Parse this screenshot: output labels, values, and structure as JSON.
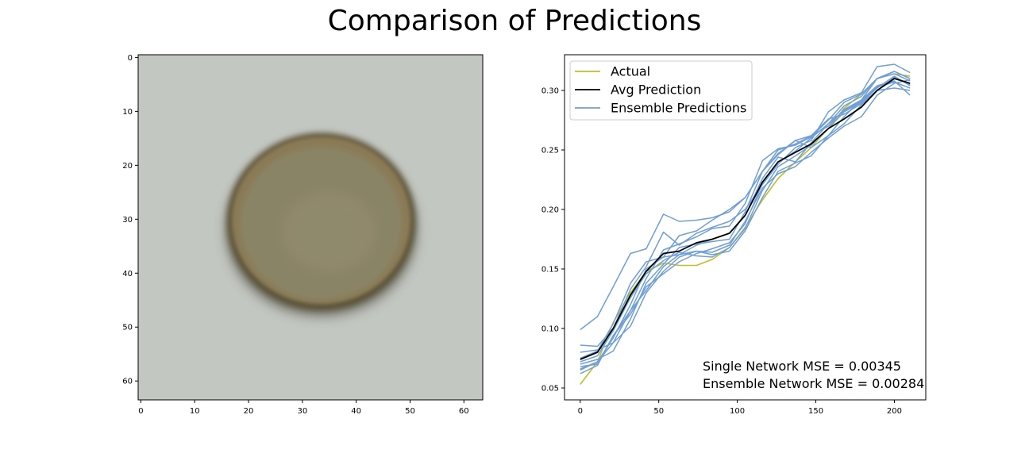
{
  "figure": {
    "title": "Comparison of Predictions"
  },
  "chart_data": [
    {
      "type": "image",
      "title": "",
      "xlabel": "",
      "ylabel": "",
      "xlim": [
        0,
        64
      ],
      "ylim": [
        64,
        0
      ],
      "x_ticks": [
        0,
        10,
        20,
        30,
        40,
        50,
        60
      ],
      "y_ticks": [
        0,
        10,
        20,
        30,
        40,
        50,
        60
      ],
      "content": "blurred brownish circular object centered on a light gray background",
      "colors": {
        "background": "#c3c7c1",
        "ring_dark": "#5b5239",
        "ring_edge": "#8a7a55",
        "fill": "#8a8466",
        "fill_light": "#958e70",
        "bottom_shadow": "#4a4a3c"
      },
      "object": {
        "center_x": 34,
        "center_y": 31,
        "radius_x": 17.5,
        "radius_y": 16.5
      }
    },
    {
      "type": "line",
      "title": "",
      "xlabel": "",
      "ylabel": "",
      "xlim": [
        -10,
        220
      ],
      "ylim": [
        0.04,
        0.33
      ],
      "x_ticks": [
        0,
        50,
        100,
        150,
        200
      ],
      "y_ticks": [
        0.05,
        0.1,
        0.15,
        0.2,
        0.25,
        0.3
      ],
      "y_tick_labels": [
        "0.05",
        "0.10",
        "0.15",
        "0.20",
        "0.25",
        "0.30"
      ],
      "x": [
        0,
        11,
        21,
        32,
        42,
        53,
        63,
        74,
        84,
        95,
        105,
        116,
        126,
        137,
        147,
        158,
        168,
        179,
        189,
        200,
        210
      ],
      "legend_position": "top-left",
      "colors": {
        "actual": "#bfbf2a",
        "avg": "#000000",
        "ensemble": "#6f9fd6"
      },
      "series": [
        {
          "name": "Actual",
          "role": "actual",
          "values": [
            0.053,
            0.072,
            0.105,
            0.13,
            0.148,
            0.155,
            0.153,
            0.153,
            0.158,
            0.168,
            0.185,
            0.208,
            0.226,
            0.24,
            0.252,
            0.268,
            0.285,
            0.297,
            0.31,
            0.314,
            0.312
          ]
        },
        {
          "name": "Avg Prediction",
          "role": "avg",
          "values": [
            0.074,
            0.08,
            0.1,
            0.128,
            0.148,
            0.163,
            0.165,
            0.172,
            0.175,
            0.18,
            0.195,
            0.223,
            0.24,
            0.248,
            0.255,
            0.268,
            0.276,
            0.286,
            0.3,
            0.31,
            0.306
          ]
        },
        {
          "name": "Ensemble Predictions",
          "role": "ensemble",
          "members": [
            [
              0.099,
              0.11,
              0.135,
              0.163,
              0.167,
              0.196,
              0.19,
              0.191,
              0.193,
              0.198,
              0.21,
              0.232,
              0.247,
              0.258,
              0.262,
              0.27,
              0.284,
              0.292,
              0.31,
              0.316,
              0.31
            ],
            [
              0.086,
              0.085,
              0.1,
              0.133,
              0.152,
              0.181,
              0.17,
              0.18,
              0.185,
              0.19,
              0.2,
              0.221,
              0.238,
              0.252,
              0.258,
              0.282,
              0.292,
              0.298,
              0.32,
              0.322,
              0.315
            ],
            [
              0.066,
              0.072,
              0.092,
              0.12,
              0.15,
              0.16,
              0.178,
              0.182,
              0.191,
              0.2,
              0.21,
              0.232,
              0.25,
              0.255,
              0.262,
              0.276,
              0.28,
              0.289,
              0.3,
              0.311,
              0.305
            ],
            [
              0.07,
              0.074,
              0.081,
              0.108,
              0.138,
              0.154,
              0.168,
              0.171,
              0.173,
              0.175,
              0.198,
              0.232,
              0.246,
              0.258,
              0.252,
              0.262,
              0.278,
              0.292,
              0.304,
              0.308,
              0.296
            ],
            [
              0.08,
              0.082,
              0.088,
              0.102,
              0.13,
              0.148,
              0.16,
              0.165,
              0.162,
              0.165,
              0.182,
              0.21,
              0.232,
              0.239,
              0.245,
              0.262,
              0.272,
              0.288,
              0.3,
              0.302,
              0.3
            ],
            [
              0.068,
              0.07,
              0.094,
              0.112,
              0.135,
              0.146,
              0.156,
              0.163,
              0.167,
              0.172,
              0.188,
              0.222,
              0.24,
              0.249,
              0.26,
              0.272,
              0.287,
              0.295,
              0.31,
              0.314,
              0.308
            ],
            [
              0.072,
              0.077,
              0.098,
              0.126,
              0.146,
              0.157,
              0.164,
              0.161,
              0.16,
              0.168,
              0.184,
              0.216,
              0.236,
              0.245,
              0.254,
              0.268,
              0.282,
              0.29,
              0.302,
              0.312,
              0.304
            ],
            [
              0.065,
              0.072,
              0.088,
              0.115,
              0.132,
              0.152,
              0.162,
              0.165,
              0.164,
              0.17,
              0.19,
              0.218,
              0.23,
              0.236,
              0.248,
              0.26,
              0.27,
              0.278,
              0.296,
              0.306,
              0.309
            ],
            [
              0.075,
              0.081,
              0.104,
              0.138,
              0.156,
              0.16,
              0.162,
              0.17,
              0.175,
              0.18,
              0.195,
              0.226,
              0.244,
              0.24,
              0.256,
              0.272,
              0.283,
              0.291,
              0.303,
              0.307,
              0.302
            ],
            [
              0.062,
              0.069,
              0.094,
              0.115,
              0.142,
              0.166,
              0.171,
              0.177,
              0.184,
              0.186,
              0.205,
              0.241,
              0.251,
              0.254,
              0.261,
              0.275,
              0.29,
              0.297,
              0.31,
              0.316,
              0.31
            ]
          ]
        }
      ],
      "annotations": [
        "Single Network MSE = 0.00345",
        "Ensemble Network MSE = 0.00284"
      ]
    }
  ]
}
